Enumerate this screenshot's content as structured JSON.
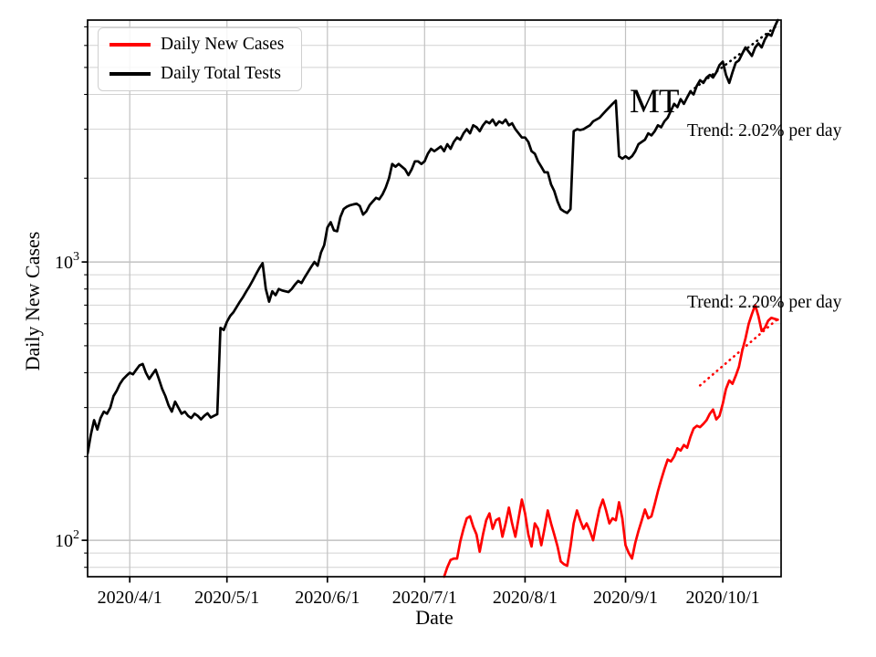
{
  "figure": {
    "background": "#ffffff",
    "annotations": {
      "state_label": "MT"
    }
  },
  "chart_data": {
    "type": "line",
    "title": "",
    "xlabel": "Date",
    "ylabel": "Daily New Cases",
    "yscale": "log",
    "grid": {
      "which": "both",
      "color_major": "#b6b6b6",
      "color_minor": "#d2d2d2",
      "color_vertical": "#c2c2c2"
    },
    "legend_position": "upper left",
    "xlim": [
      "2020-03-19",
      "2020-10-19"
    ],
    "ylim": [
      74,
      7400
    ],
    "x_ticks": [
      {
        "date": "2020-04-01",
        "label": "2020/4/1"
      },
      {
        "date": "2020-05-01",
        "label": "2020/5/1"
      },
      {
        "date": "2020-06-01",
        "label": "2020/6/1"
      },
      {
        "date": "2020-07-01",
        "label": "2020/7/1"
      },
      {
        "date": "2020-08-01",
        "label": "2020/8/1"
      },
      {
        "date": "2020-09-01",
        "label": "2020/9/1"
      },
      {
        "date": "2020-10-01",
        "label": "2020/10/1"
      }
    ],
    "y_ticks": [
      {
        "value": 100,
        "base": "10",
        "exp": "2"
      },
      {
        "value": 1000,
        "base": "10",
        "exp": "3"
      }
    ],
    "series": [
      {
        "name": "Daily New Cases",
        "color": "#ff0000",
        "start_date": "2020-07-07",
        "values": [
          74,
          80,
          85,
          86,
          86,
          99,
          110,
          120,
          122,
          112,
          105,
          91,
          105,
          118,
          125,
          110,
          118,
          120,
          103,
          115,
          131,
          115,
          103,
          120,
          140,
          125,
          105,
          95,
          115,
          110,
          96,
          110,
          128,
          115,
          105,
          95,
          84,
          82,
          81,
          95,
          115,
          128,
          118,
          110,
          115,
          108,
          100,
          115,
          130,
          140,
          128,
          115,
          120,
          118,
          137,
          120,
          96,
          90,
          86,
          98,
          108,
          118,
          129,
          120,
          122,
          135,
          150,
          165,
          180,
          195,
          192,
          200,
          214,
          210,
          220,
          215,
          235,
          252,
          258,
          255,
          262,
          270,
          285,
          295,
          272,
          280,
          310,
          350,
          375,
          365,
          390,
          420,
          480,
          530,
          600,
          650,
          700,
          640,
          565,
          580,
          615,
          630,
          625,
          620
        ]
      },
      {
        "name": "Daily Total Tests",
        "color": "#000000",
        "start_date": "2020-03-19",
        "values": [
          205,
          240,
          270,
          250,
          275,
          290,
          285,
          300,
          330,
          345,
          365,
          380,
          390,
          400,
          395,
          410,
          425,
          430,
          400,
          380,
          395,
          410,
          380,
          350,
          330,
          305,
          290,
          315,
          300,
          285,
          290,
          280,
          275,
          285,
          280,
          272,
          280,
          286,
          276,
          280,
          284,
          580,
          570,
          610,
          640,
          660,
          690,
          720,
          750,
          785,
          820,
          860,
          905,
          950,
          990,
          800,
          720,
          785,
          760,
          800,
          790,
          785,
          780,
          800,
          830,
          855,
          840,
          880,
          920,
          960,
          1000,
          970,
          1080,
          1150,
          1330,
          1390,
          1300,
          1290,
          1450,
          1550,
          1580,
          1600,
          1610,
          1620,
          1590,
          1480,
          1520,
          1600,
          1650,
          1700,
          1680,
          1750,
          1850,
          2000,
          2250,
          2200,
          2250,
          2200,
          2150,
          2050,
          2150,
          2300,
          2300,
          2250,
          2300,
          2450,
          2550,
          2500,
          2550,
          2600,
          2500,
          2650,
          2550,
          2700,
          2800,
          2750,
          2900,
          3000,
          2900,
          3100,
          3050,
          2950,
          3100,
          3200,
          3150,
          3250,
          3100,
          3200,
          3150,
          3250,
          3100,
          3150,
          3000,
          2900,
          2800,
          2800,
          2700,
          2500,
          2450,
          2300,
          2200,
          2100,
          2100,
          1900,
          1800,
          1650,
          1550,
          1520,
          1500,
          1550,
          2950,
          3000,
          2980,
          3000,
          3050,
          3100,
          3200,
          3250,
          3300,
          3400,
          3500,
          3600,
          3700,
          3800,
          2400,
          2350,
          2400,
          2350,
          2400,
          2500,
          2650,
          2700,
          2750,
          2900,
          2850,
          2950,
          3100,
          3050,
          3200,
          3300,
          3500,
          3700,
          3600,
          3850,
          3700,
          3900,
          4100,
          4000,
          4300,
          4500,
          4400,
          4600,
          4700,
          4600,
          4800,
          5100,
          5250,
          4700,
          4400,
          4800,
          5200,
          5300,
          5600,
          5900,
          5700,
          5500,
          5900,
          6100,
          5900,
          6300,
          6600,
          6500,
          7000,
          7400
        ]
      }
    ],
    "trend_lines": [
      {
        "series": "Daily Total Tests",
        "label": "Trend: 2.02% per day",
        "rate_percent_per_day": 2.02,
        "color": "#000000",
        "style": "dotted",
        "start_date": "2020-09-21",
        "start_value": 4100,
        "end_date": "2020-10-18",
        "end_value": 7100
      },
      {
        "series": "Daily New Cases",
        "label": "Trend: 2.20% per day",
        "rate_percent_per_day": 2.2,
        "color": "#ff0000",
        "style": "dotted",
        "start_date": "2020-09-24",
        "start_value": 360,
        "end_date": "2020-10-18",
        "end_value": 625
      }
    ]
  }
}
